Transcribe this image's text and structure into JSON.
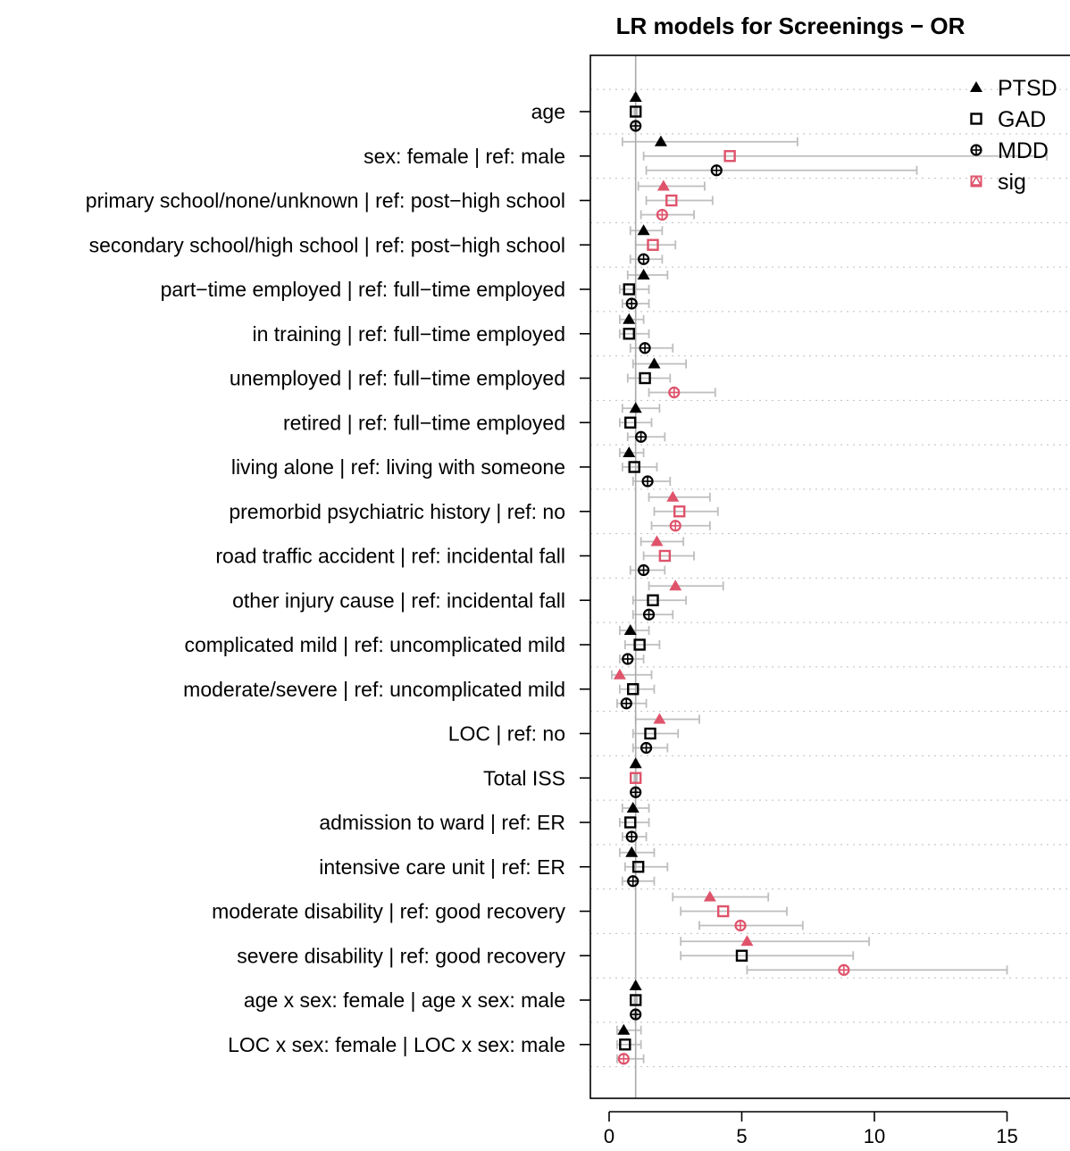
{
  "chart_data": {
    "type": "scatter",
    "title": "LR models for Screenings − OR",
    "xlabel": "",
    "ylabel": "",
    "xlim": [
      -0.6,
      16.5
    ],
    "xticks": [
      0,
      5,
      10,
      15
    ],
    "xtick_labels": [
      "0",
      "5",
      "10",
      "15"
    ],
    "reference_line": 1,
    "grid": "dotted horizontal",
    "legend_position": "top-right",
    "legend": [
      {
        "label": "PTSD",
        "marker": "triangle",
        "color": "#000000"
      },
      {
        "label": "GAD",
        "marker": "square",
        "color": "#000000"
      },
      {
        "label": "MDD",
        "marker": "circle-plus",
        "color": "#000000"
      },
      {
        "label": "sig",
        "marker": "square-triangle",
        "color": "#DF536B"
      }
    ],
    "colors": {
      "default": "#000000",
      "sig": "#DF536B",
      "ci": "#BEBEBE",
      "grid": "#BEBEBE"
    },
    "categories": [
      "age",
      "sex: female | ref: male",
      "primary school/none/unknown | ref: post−high school",
      "secondary school/high school | ref: post−high school",
      "part−time employed | ref: full−time employed",
      "in training | ref: full−time employed",
      "unemployed | ref: full−time employed",
      "retired | ref: full−time employed",
      "living alone | ref: living with someone",
      "premorbid psychiatric history | ref: no",
      "road traffic accident | ref: incidental fall",
      "other injury cause | ref: incidental fall",
      "complicated mild | ref: uncomplicated mild",
      "moderate/severe | ref: uncomplicated mild",
      "LOC | ref: no",
      "Total ISS",
      "admission to ward | ref: ER",
      "intensive care unit | ref: ER",
      "moderate disability | ref: good recovery",
      "severe disability | ref: good recovery",
      "age x sex: female | age x sex: male",
      "LOC x sex: female | LOC x sex: male"
    ],
    "series": [
      {
        "name": "PTSD",
        "values": [
          1.0,
          1.95,
          2.05,
          1.3,
          1.3,
          0.75,
          1.7,
          1.0,
          0.75,
          2.4,
          1.8,
          2.5,
          0.8,
          0.4,
          1.9,
          1.0,
          0.9,
          0.85,
          3.8,
          5.2,
          1.0,
          0.55
        ],
        "ci_low": [
          0.95,
          0.5,
          1.1,
          0.8,
          0.7,
          0.4,
          0.9,
          0.5,
          0.4,
          1.5,
          1.2,
          1.5,
          0.4,
          0.1,
          1.0,
          0.95,
          0.5,
          0.4,
          2.4,
          2.7,
          0.95,
          0.3
        ],
        "ci_high": [
          1.05,
          7.1,
          3.6,
          2.0,
          2.2,
          1.3,
          2.9,
          1.9,
          1.3,
          3.8,
          2.8,
          4.3,
          1.5,
          1.6,
          3.4,
          1.05,
          1.5,
          1.7,
          6.0,
          9.8,
          1.05,
          1.2
        ],
        "sig": [
          false,
          false,
          true,
          false,
          false,
          false,
          false,
          false,
          false,
          true,
          true,
          true,
          false,
          true,
          true,
          false,
          false,
          false,
          true,
          true,
          false,
          false
        ]
      },
      {
        "name": "GAD",
        "values": [
          1.0,
          4.55,
          2.35,
          1.65,
          0.75,
          0.75,
          1.35,
          0.8,
          0.95,
          2.65,
          2.1,
          1.65,
          1.15,
          0.9,
          1.55,
          1.0,
          0.8,
          1.1,
          4.3,
          5.0,
          1.0,
          0.6
        ],
        "ci_low": [
          0.95,
          1.3,
          1.4,
          1.0,
          0.4,
          0.4,
          0.7,
          0.4,
          0.5,
          1.7,
          1.3,
          0.9,
          0.6,
          0.4,
          0.9,
          0.95,
          0.4,
          0.6,
          2.7,
          2.7,
          0.95,
          0.3
        ],
        "ci_high": [
          1.05,
          16.5,
          3.9,
          2.5,
          1.5,
          1.5,
          2.3,
          1.6,
          1.8,
          4.1,
          3.2,
          2.9,
          1.9,
          1.7,
          2.6,
          1.05,
          1.5,
          2.2,
          6.7,
          9.2,
          1.05,
          1.2
        ],
        "sig": [
          false,
          true,
          true,
          true,
          false,
          false,
          false,
          false,
          false,
          true,
          true,
          false,
          false,
          false,
          false,
          true,
          false,
          false,
          true,
          false,
          false,
          false
        ]
      },
      {
        "name": "MDD",
        "values": [
          1.0,
          4.05,
          2.0,
          1.3,
          0.85,
          1.35,
          2.45,
          1.2,
          1.45,
          2.5,
          1.3,
          1.5,
          0.7,
          0.65,
          1.4,
          1.0,
          0.85,
          0.9,
          4.95,
          8.85,
          1.0,
          0.55
        ],
        "ci_low": [
          0.95,
          1.4,
          1.2,
          0.8,
          0.5,
          0.8,
          1.5,
          0.7,
          0.9,
          1.6,
          0.8,
          0.9,
          0.4,
          0.3,
          0.9,
          0.95,
          0.5,
          0.5,
          3.4,
          5.2,
          0.95,
          0.3
        ],
        "ci_high": [
          1.05,
          11.6,
          3.2,
          2.0,
          1.5,
          2.4,
          4.0,
          2.1,
          2.3,
          3.8,
          2.1,
          2.4,
          1.3,
          1.4,
          2.2,
          1.05,
          1.4,
          1.7,
          7.3,
          15.0,
          1.05,
          1.3
        ],
        "sig": [
          false,
          false,
          true,
          false,
          false,
          false,
          true,
          false,
          false,
          true,
          false,
          false,
          false,
          false,
          false,
          false,
          false,
          false,
          true,
          true,
          false,
          true
        ]
      }
    ]
  }
}
